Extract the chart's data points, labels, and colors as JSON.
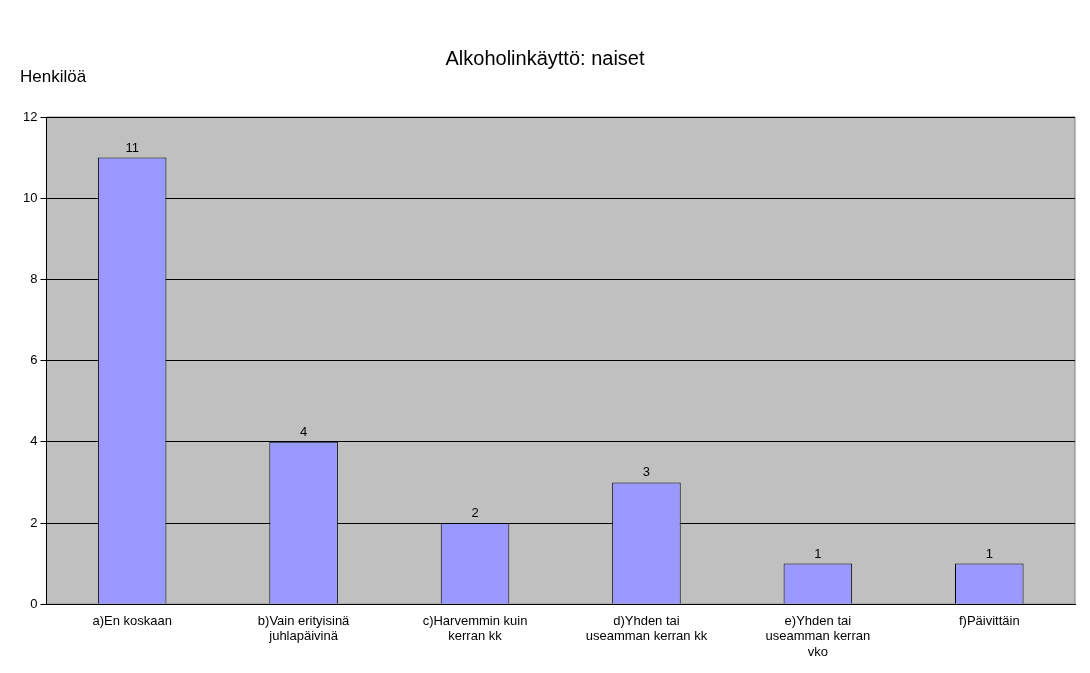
{
  "chart_data": {
    "type": "bar",
    "title": "Alkoholinkäyttö: naiset",
    "ylabel": "Henkilöä",
    "categories": [
      "a)En koskaan",
      "b)Vain erityisinä juhlapäivinä",
      "c)Harvemmin kuin kerran kk",
      "d)Yhden tai useamman kerran kk",
      "e)Yhden tai useamman kerran vko",
      "f)Päivittäin"
    ],
    "values": [
      11,
      4,
      2,
      3,
      1,
      1
    ],
    "color": "#9999ff",
    "ylim": [
      0,
      12
    ],
    "yticks": [
      0,
      2,
      4,
      6,
      8,
      10,
      12
    ],
    "grid": "y",
    "data_labels": true,
    "legend": false
  }
}
